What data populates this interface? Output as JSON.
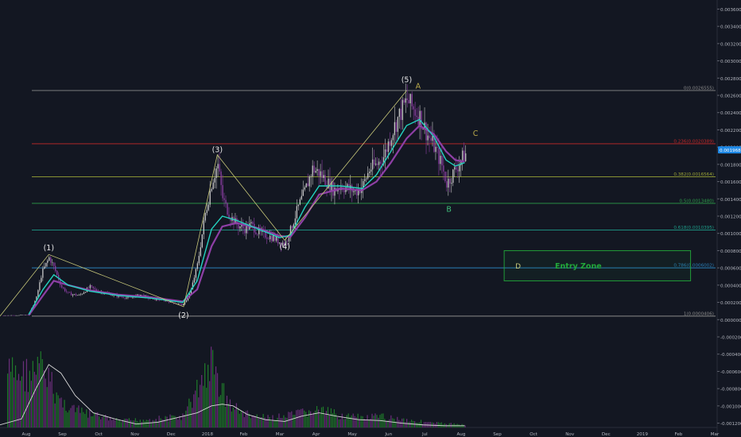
{
  "theme": {
    "background": "#131722",
    "grid": "#1f2433",
    "axis_text": "#b2b5be",
    "candle_up": "#c8c8c8",
    "candle_down": "#8e3fa6",
    "wave_line": "#c9c97a",
    "ema_fast": "#24d3c0",
    "ema_slow": "#8e3fa6",
    "volume_up": "#1f7a2a",
    "volume_down": "#6a2f7a",
    "volume_ma": "#d8d8d8",
    "entry_zone": "#22a83a"
  },
  "chart_data": {
    "type": "candlestick",
    "title": "",
    "price_axis": {
      "ticks": [
        "0.0036000",
        "0.0034000",
        "0.0032000",
        "0.0030000",
        "0.0028000",
        "0.0026000",
        "0.0024000",
        "0.0022000",
        "0.0020000",
        "0.0018000",
        "0.0016000",
        "0.0014000",
        "0.0012000",
        "0.0010000",
        "0.0008000",
        "0.0006000",
        "0.0004000",
        "0.0002000",
        "0.0000000",
        "-0.0002000",
        "-0.0004000",
        "-0.0006000",
        "-0.0008000",
        "-0.0010000",
        "-0.0012000"
      ],
      "ylim": [
        -0.00125,
        0.00365
      ],
      "last_price_badge": "0.0019681"
    },
    "time_axis": {
      "ticks": [
        "Aug",
        "Sep",
        "Oct",
        "Nov",
        "Dec",
        "2018",
        "Feb",
        "Mar",
        "Apr",
        "May",
        "Jun",
        "Jul",
        "Aug",
        "Sep",
        "Oct",
        "Nov",
        "Dec",
        "2019",
        "Feb",
        "Mar"
      ]
    },
    "fibonacci_levels": [
      {
        "label": "0(0.0026555)",
        "value": 0.0026555,
        "color": "#8a8a8a"
      },
      {
        "label": "0.236(0.0020389)",
        "value": 0.0020389,
        "color": "#c62828"
      },
      {
        "label": "0.382(0.0016564)",
        "value": 0.0016564,
        "color": "#9aa336"
      },
      {
        "label": "0.5(0.0013480)",
        "value": 0.001348,
        "color": "#2e9e4a"
      },
      {
        "label": "0.618(0.0010395)",
        "value": 0.0010395,
        "color": "#1e9e8a"
      },
      {
        "label": "0.786(0.0006002)",
        "value": 0.0006002,
        "color": "#2a7fb8"
      },
      {
        "label": "1(0.0000406)",
        "value": 4.06e-05,
        "color": "#8a8a8a"
      }
    ],
    "wave_labels": [
      {
        "text": "(1)",
        "t": 0.068,
        "price": 0.000805,
        "color": "#e8e8e8"
      },
      {
        "text": "(2)",
        "t": 0.256,
        "price": 2e-05,
        "color": "#e8e8e8"
      },
      {
        "text": "(3)",
        "t": 0.303,
        "price": 0.00194,
        "color": "#e8e8e8"
      },
      {
        "text": "(4)",
        "t": 0.397,
        "price": 0.00082,
        "color": "#e8e8e8"
      },
      {
        "text": "(5)",
        "t": 0.567,
        "price": 0.00275,
        "color": "#e8e8e8"
      },
      {
        "text": "A",
        "t": 0.583,
        "price": 0.00268,
        "color": "#b8a84a"
      },
      {
        "text": "B",
        "t": 0.626,
        "price": 0.00125,
        "color": "#3fbf7a"
      },
      {
        "text": "C",
        "t": 0.663,
        "price": 0.00213,
        "color": "#b8a84a"
      }
    ],
    "wave_path": [
      {
        "t": 0.0,
        "price": 4.06e-05
      },
      {
        "t": 0.068,
        "price": 0.000755
      },
      {
        "t": 0.256,
        "price": 0.00015
      },
      {
        "t": 0.303,
        "price": 0.00191
      },
      {
        "t": 0.397,
        "price": 0.00092
      },
      {
        "t": 0.567,
        "price": 0.002655
      }
    ],
    "entry_zone": {
      "label": "Entry Zone",
      "corner_label": "D",
      "t_start": 0.703,
      "t_end": 0.963,
      "price_high": 0.0008,
      "price_low": 0.00045
    },
    "price_path": [
      [
        0.0,
        4.5e-05
      ],
      [
        0.02,
        5e-05
      ],
      [
        0.04,
        6e-05
      ],
      [
        0.05,
        0.00025
      ],
      [
        0.058,
        0.00055
      ],
      [
        0.068,
        0.00072
      ],
      [
        0.075,
        0.0006
      ],
      [
        0.085,
        0.00038
      ],
      [
        0.095,
        0.0003
      ],
      [
        0.11,
        0.00028
      ],
      [
        0.125,
        0.00038
      ],
      [
        0.135,
        0.00033
      ],
      [
        0.15,
        0.0003
      ],
      [
        0.165,
        0.00027
      ],
      [
        0.18,
        0.00025
      ],
      [
        0.195,
        0.00029
      ],
      [
        0.21,
        0.00024
      ],
      [
        0.225,
        0.00023
      ],
      [
        0.24,
        0.0002
      ],
      [
        0.255,
        0.00017
      ],
      [
        0.265,
        0.00032
      ],
      [
        0.275,
        0.00065
      ],
      [
        0.285,
        0.0012
      ],
      [
        0.295,
        0.0016
      ],
      [
        0.303,
        0.0018
      ],
      [
        0.31,
        0.0014
      ],
      [
        0.32,
        0.0012
      ],
      [
        0.33,
        0.0011
      ],
      [
        0.34,
        0.00105
      ],
      [
        0.35,
        0.0011
      ],
      [
        0.36,
        0.001
      ],
      [
        0.37,
        0.00098
      ],
      [
        0.38,
        0.00095
      ],
      [
        0.39,
        0.0009
      ],
      [
        0.397,
        0.00088
      ],
      [
        0.405,
        0.00105
      ],
      [
        0.415,
        0.0013
      ],
      [
        0.425,
        0.0015
      ],
      [
        0.435,
        0.00175
      ],
      [
        0.445,
        0.0017
      ],
      [
        0.455,
        0.0016
      ],
      [
        0.465,
        0.0015
      ],
      [
        0.475,
        0.00155
      ],
      [
        0.485,
        0.00152
      ],
      [
        0.495,
        0.00148
      ],
      [
        0.505,
        0.00155
      ],
      [
        0.515,
        0.00175
      ],
      [
        0.525,
        0.0018
      ],
      [
        0.535,
        0.0019
      ],
      [
        0.545,
        0.00215
      ],
      [
        0.555,
        0.00235
      ],
      [
        0.567,
        0.00255
      ],
      [
        0.575,
        0.00245
      ],
      [
        0.585,
        0.00235
      ],
      [
        0.595,
        0.00215
      ],
      [
        0.605,
        0.002
      ],
      [
        0.615,
        0.0018
      ],
      [
        0.622,
        0.00158
      ],
      [
        0.628,
        0.00165
      ],
      [
        0.635,
        0.00175
      ],
      [
        0.642,
        0.00185
      ],
      [
        0.648,
        0.00192
      ]
    ],
    "ema_fast": [
      [
        0.04,
        6e-05
      ],
      [
        0.06,
        0.00035
      ],
      [
        0.075,
        0.00052
      ],
      [
        0.095,
        0.0004
      ],
      [
        0.125,
        0.00033
      ],
      [
        0.165,
        0.00028
      ],
      [
        0.21,
        0.00025
      ],
      [
        0.255,
        0.0002
      ],
      [
        0.275,
        0.00045
      ],
      [
        0.295,
        0.00105
      ],
      [
        0.31,
        0.0012
      ],
      [
        0.33,
        0.00115
      ],
      [
        0.36,
        0.00105
      ],
      [
        0.39,
        0.00095
      ],
      [
        0.405,
        0.00098
      ],
      [
        0.425,
        0.0013
      ],
      [
        0.445,
        0.00155
      ],
      [
        0.475,
        0.00155
      ],
      [
        0.505,
        0.00152
      ],
      [
        0.525,
        0.00168
      ],
      [
        0.545,
        0.00195
      ],
      [
        0.567,
        0.00225
      ],
      [
        0.585,
        0.00232
      ],
      [
        0.605,
        0.00212
      ],
      [
        0.622,
        0.00185
      ],
      [
        0.635,
        0.00178
      ],
      [
        0.648,
        0.00182
      ]
    ],
    "ema_slow": [
      [
        0.04,
        5e-05
      ],
      [
        0.06,
        0.00028
      ],
      [
        0.075,
        0.00045
      ],
      [
        0.095,
        0.0004
      ],
      [
        0.125,
        0.00034
      ],
      [
        0.165,
        0.00029
      ],
      [
        0.21,
        0.00026
      ],
      [
        0.255,
        0.00021
      ],
      [
        0.275,
        0.00035
      ],
      [
        0.295,
        0.00085
      ],
      [
        0.31,
        0.00108
      ],
      [
        0.33,
        0.00112
      ],
      [
        0.36,
        0.00106
      ],
      [
        0.39,
        0.00097
      ],
      [
        0.405,
        0.00096
      ],
      [
        0.425,
        0.00118
      ],
      [
        0.445,
        0.00145
      ],
      [
        0.475,
        0.00152
      ],
      [
        0.505,
        0.0015
      ],
      [
        0.525,
        0.0016
      ],
      [
        0.545,
        0.00182
      ],
      [
        0.567,
        0.0021
      ],
      [
        0.585,
        0.00225
      ],
      [
        0.605,
        0.00215
      ],
      [
        0.622,
        0.00195
      ],
      [
        0.635,
        0.00185
      ],
      [
        0.648,
        0.00183
      ]
    ],
    "volume_ma": [
      [
        0.0,
        -0.00122
      ],
      [
        0.03,
        -0.00115
      ],
      [
        0.05,
        -0.0008
      ],
      [
        0.068,
        -0.00052
      ],
      [
        0.085,
        -0.00062
      ],
      [
        0.105,
        -0.00088
      ],
      [
        0.13,
        -0.00108
      ],
      [
        0.16,
        -0.00115
      ],
      [
        0.19,
        -0.00121
      ],
      [
        0.22,
        -0.00119
      ],
      [
        0.255,
        -0.00112
      ],
      [
        0.275,
        -0.00108
      ],
      [
        0.295,
        -0.001
      ],
      [
        0.31,
        -0.00098
      ],
      [
        0.325,
        -0.001
      ],
      [
        0.345,
        -0.0011
      ],
      [
        0.37,
        -0.00116
      ],
      [
        0.397,
        -0.00118
      ],
      [
        0.42,
        -0.00112
      ],
      [
        0.445,
        -0.00108
      ],
      [
        0.47,
        -0.00112
      ],
      [
        0.5,
        -0.00116
      ],
      [
        0.53,
        -0.00117
      ],
      [
        0.56,
        -0.0012
      ],
      [
        0.59,
        -0.00122
      ],
      [
        0.62,
        -0.00123
      ],
      [
        0.648,
        -0.00123
      ]
    ],
    "volume_peaks": [
      [
        0.048,
        -0.0004
      ],
      [
        0.055,
        -0.00032
      ],
      [
        0.06,
        -0.00035
      ],
      [
        0.068,
        -0.00052
      ],
      [
        0.085,
        -0.00085
      ],
      [
        0.11,
        -0.001
      ],
      [
        0.13,
        -0.00105
      ],
      [
        0.165,
        -0.00115
      ],
      [
        0.21,
        -0.00112
      ],
      [
        0.255,
        -0.00108
      ],
      [
        0.27,
        -0.00075
      ],
      [
        0.285,
        -0.0004
      ],
      [
        0.295,
        -0.00025
      ],
      [
        0.303,
        -0.0005
      ],
      [
        0.32,
        -0.0009
      ],
      [
        0.345,
        -0.00105
      ],
      [
        0.37,
        -0.0011
      ],
      [
        0.397,
        -0.00108
      ],
      [
        0.42,
        -0.00102
      ],
      [
        0.445,
        -0.00098
      ],
      [
        0.47,
        -0.00105
      ],
      [
        0.505,
        -0.0011
      ],
      [
        0.53,
        -0.00108
      ],
      [
        0.56,
        -0.00112
      ],
      [
        0.6,
        -0.00118
      ],
      [
        0.64,
        -0.0012
      ]
    ]
  }
}
